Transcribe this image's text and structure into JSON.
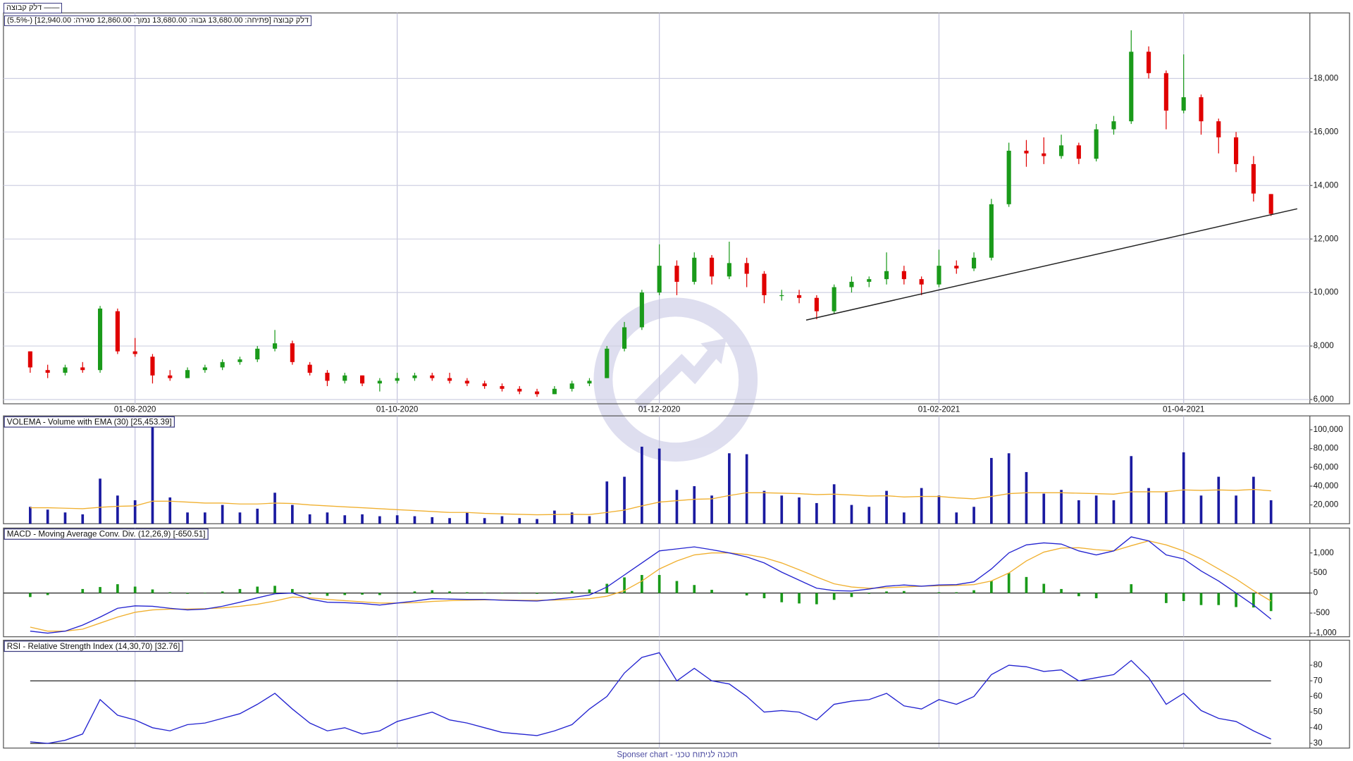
{
  "chart_data": [
    {
      "type": "candlestick",
      "legend": "דלק קבוצה",
      "info": "דלק קבוצה [פתיחה: 13,680.00  גבוה: 13,680.00  נמוך: 12,860.00  סגירה: 12,940.00] (-5.5%)",
      "categories": [
        null,
        null,
        null,
        null,
        null,
        null,
        "01-08-2020",
        null,
        null,
        null,
        null,
        null,
        null,
        null,
        null,
        null,
        null,
        null,
        null,
        null,
        null,
        "01-10-2020",
        null,
        null,
        null,
        null,
        null,
        null,
        null,
        null,
        null,
        null,
        null,
        null,
        null,
        null,
        "01-12-2020",
        null,
        null,
        null,
        null,
        null,
        null,
        null,
        null,
        null,
        null,
        null,
        null,
        null,
        null,
        null,
        "01-02-2021",
        null,
        null,
        null,
        null,
        null,
        null,
        null,
        null,
        null,
        null,
        null,
        null,
        null,
        "01-04-2021",
        null,
        null,
        null,
        null,
        null
      ],
      "open": [
        7800,
        7100,
        7000,
        7200,
        7100,
        9300,
        7800,
        7600,
        6900,
        6800,
        7100,
        7200,
        7400,
        7500,
        7900,
        8100,
        7300,
        7000,
        6700,
        6900,
        6600,
        6700,
        6800,
        6900,
        6800,
        6700,
        6600,
        6500,
        6400,
        6300,
        6200,
        6400,
        6600,
        6800,
        7900,
        8700,
        10000,
        11000,
        10400,
        11300,
        10600,
        11100,
        10700,
        9900,
        9900,
        9800,
        9300,
        10200,
        10400,
        10500,
        10800,
        10500,
        10300,
        11000,
        10900,
        11300,
        13300,
        15300,
        15200,
        15100,
        15500,
        15000,
        16100,
        16400,
        19000,
        18200,
        16800,
        17300,
        16400,
        15800,
        14800,
        13680
      ],
      "high": [
        7800,
        7300,
        7300,
        7400,
        9500,
        9400,
        8300,
        7700,
        7100,
        7200,
        7300,
        7500,
        7600,
        8000,
        8600,
        8200,
        7400,
        7100,
        7000,
        6900,
        6800,
        7000,
        7000,
        7000,
        7000,
        6800,
        6700,
        6600,
        6500,
        6400,
        6500,
        6700,
        6800,
        8000,
        8900,
        10100,
        11800,
        11200,
        11500,
        11400,
        11900,
        11300,
        10800,
        10100,
        10100,
        9900,
        10300,
        10600,
        10600,
        11500,
        11000,
        10600,
        11600,
        11200,
        11500,
        13500,
        15600,
        15700,
        15800,
        15900,
        15600,
        16300,
        16600,
        19800,
        19200,
        18300,
        18900,
        17400,
        16500,
        16000,
        15100,
        13680
      ],
      "low": [
        7000,
        6800,
        6900,
        7000,
        7000,
        7700,
        7600,
        6600,
        6700,
        6800,
        7000,
        7100,
        7300,
        7400,
        7800,
        7300,
        6900,
        6500,
        6600,
        6500,
        6300,
        6600,
        6700,
        6700,
        6600,
        6500,
        6400,
        6300,
        6200,
        6100,
        6200,
        6300,
        6500,
        6800,
        7800,
        8600,
        9900,
        9900,
        10300,
        10300,
        10500,
        10200,
        9600,
        9700,
        9600,
        9000,
        9200,
        10000,
        10200,
        10300,
        10300,
        9900,
        10200,
        10700,
        10800,
        11200,
        13200,
        14700,
        14800,
        15000,
        14800,
        14900,
        15900,
        16300,
        18000,
        16100,
        16700,
        15900,
        15200,
        14500,
        13400,
        12860
      ],
      "close": [
        7200,
        7000,
        7200,
        7100,
        9400,
        7800,
        7700,
        6900,
        6800,
        7100,
        7200,
        7400,
        7500,
        7900,
        8100,
        7400,
        7000,
        6700,
        6900,
        6600,
        6700,
        6800,
        6900,
        6800,
        6700,
        6600,
        6500,
        6400,
        6300,
        6200,
        6400,
        6600,
        6700,
        7900,
        8700,
        10000,
        11000,
        10400,
        11300,
        10600,
        11100,
        10700,
        9900,
        9900,
        9800,
        9300,
        10200,
        10400,
        10500,
        10800,
        10500,
        10300,
        11000,
        10900,
        11300,
        13300,
        15300,
        15200,
        15100,
        15500,
        15000,
        16100,
        16400,
        19000,
        18200,
        16800,
        17300,
        16400,
        15800,
        14800,
        13700,
        12940
      ],
      "up_color": "#1a9a1a",
      "down_color": "#e00000",
      "trend_line": {
        "values": [
          8970,
          13130
        ],
        "color": "#222222"
      },
      "ylim": [
        5840,
        20450
      ],
      "yticks": [
        {
          "value": 6000,
          "label": "6,000"
        },
        {
          "value": 8000,
          "label": "8,000"
        },
        {
          "value": 10000,
          "label": "10,000"
        },
        {
          "value": 12000,
          "label": "12,000"
        },
        {
          "value": 14000,
          "label": "14,000"
        },
        {
          "value": 16000,
          "label": "16,000"
        },
        {
          "value": 18000,
          "label": "18,000"
        }
      ],
      "grid": true
    },
    {
      "type": "bar",
      "title": "VOLEMA - Volume with EMA (30) [25,453.39]",
      "values": [
        18000,
        15000,
        12000,
        10000,
        48000,
        30000,
        25000,
        105000,
        28000,
        12000,
        12000,
        20000,
        12000,
        16000,
        33000,
        20000,
        10000,
        12000,
        9000,
        10000,
        8000,
        9000,
        8000,
        7000,
        6000,
        12000,
        6000,
        8000,
        6000,
        5000,
        14000,
        12000,
        8000,
        45000,
        50000,
        82000,
        80000,
        36000,
        40000,
        30000,
        75000,
        74000,
        35000,
        30000,
        28000,
        22000,
        42000,
        20000,
        18000,
        35000,
        12000,
        38000,
        30000,
        12000,
        18000,
        70000,
        75000,
        55000,
        32000,
        36000,
        25000,
        30000,
        25000,
        72000,
        38000,
        34000,
        76000,
        30000,
        50000,
        30000,
        50000,
        25000
      ],
      "color": "#1a1aa0",
      "ema": {
        "color": "#f0b030",
        "values": [
          17000,
          17000,
          16500,
          16000,
          17500,
          18500,
          19000,
          24000,
          24000,
          23000,
          22000,
          22000,
          21000,
          21000,
          22000,
          21500,
          20000,
          19000,
          18000,
          17000,
          16000,
          15000,
          14000,
          13000,
          12000,
          12000,
          11000,
          10500,
          10000,
          9500,
          9800,
          10000,
          9800,
          12000,
          14500,
          19000,
          23000,
          24500,
          26000,
          26500,
          30000,
          33000,
          33000,
          32500,
          32000,
          31000,
          31500,
          30500,
          29500,
          29800,
          28500,
          29000,
          29000,
          27500,
          26500,
          29000,
          32000,
          33000,
          33000,
          33000,
          32500,
          32000,
          31500,
          34000,
          34000,
          34000,
          36000,
          35500,
          36000,
          35500,
          36500,
          35000
        ]
      },
      "ylim": [
        0,
        114800
      ],
      "yticks": [
        {
          "value": 20000,
          "label": "20,000"
        },
        {
          "value": 40000,
          "label": "40,000"
        },
        {
          "value": 60000,
          "label": "60,000"
        },
        {
          "value": 80000,
          "label": "80,000"
        },
        {
          "value": 100000,
          "label": "100,000"
        }
      ],
      "grid": false
    },
    {
      "type": "macd",
      "title": "MACD - Moving Average Conv. Div. (12,26,9) [-650.51]",
      "macd": {
        "color": "#2323d0",
        "values": [
          -950,
          -1000,
          -950,
          -800,
          -600,
          -380,
          -320,
          -330,
          -380,
          -420,
          -400,
          -330,
          -230,
          -120,
          -20,
          0,
          -150,
          -230,
          -240,
          -260,
          -300,
          -250,
          -200,
          -140,
          -150,
          -160,
          -160,
          -180,
          -190,
          -200,
          -160,
          -110,
          -50,
          150,
          450,
          750,
          1050,
          1100,
          1150,
          1080,
          1000,
          900,
          750,
          520,
          320,
          120,
          60,
          50,
          100,
          170,
          200,
          170,
          200,
          210,
          280,
          600,
          1000,
          1200,
          1250,
          1220,
          1050,
          950,
          1050,
          1400,
          1300,
          950,
          850,
          550,
          300,
          0,
          -300,
          -650
        ]
      },
      "signal": {
        "color": "#f0b030",
        "values": [
          -850,
          -950,
          -950,
          -900,
          -750,
          -600,
          -480,
          -420,
          -400,
          -400,
          -390,
          -370,
          -330,
          -280,
          -200,
          -100,
          -120,
          -160,
          -190,
          -220,
          -250,
          -250,
          -240,
          -210,
          -190,
          -180,
          -170,
          -170,
          -180,
          -180,
          -175,
          -160,
          -140,
          -80,
          60,
          300,
          600,
          800,
          950,
          1000,
          1000,
          960,
          880,
          750,
          580,
          400,
          230,
          150,
          120,
          130,
          150,
          170,
          180,
          190,
          210,
          300,
          500,
          800,
          1020,
          1120,
          1130,
          1080,
          1050,
          1180,
          1300,
          1200,
          1050,
          850,
          600,
          350,
          60,
          -200
        ]
      },
      "histogram": {
        "color": "#1a9a1a",
        "values": [
          -100,
          -50,
          0,
          100,
          150,
          220,
          160,
          90,
          20,
          -20,
          -10,
          40,
          100,
          160,
          180,
          100,
          -30,
          -70,
          -50,
          -40,
          -50,
          0,
          40,
          70,
          40,
          20,
          10,
          -10,
          -10,
          -20,
          15,
          50,
          90,
          230,
          390,
          450,
          450,
          300,
          200,
          80,
          0,
          -60,
          -130,
          -230,
          -260,
          -280,
          -170,
          -100,
          -20,
          40,
          50,
          0,
          20,
          20,
          70,
          300,
          500,
          400,
          230,
          100,
          -80,
          -130,
          0,
          220,
          0,
          -250,
          -200,
          -300,
          -300,
          -350,
          -360,
          -450
        ]
      },
      "ylim": [
        -1090,
        1620
      ],
      "yticks": [
        {
          "value": -1000,
          "label": "-1,000"
        },
        -500,
        0,
        500,
        {
          "value": 1000,
          "label": "1,000"
        }
      ],
      "grid": false
    },
    {
      "type": "line",
      "title": "RSI - Relative Strength Index (14,30,70) [32.76]",
      "values": [
        31,
        30,
        32,
        36,
        58,
        48,
        45,
        40,
        38,
        42,
        43,
        46,
        49,
        55,
        62,
        52,
        43,
        38,
        40,
        36,
        38,
        44,
        47,
        50,
        45,
        43,
        40,
        37,
        36,
        35,
        38,
        42,
        52,
        60,
        75,
        85,
        88,
        70,
        78,
        70,
        68,
        60,
        50,
        51,
        50,
        45,
        55,
        57,
        58,
        62,
        54,
        52,
        58,
        55,
        60,
        74,
        80,
        79,
        76,
        77,
        70,
        72,
        74,
        83,
        72,
        55,
        62,
        51,
        46,
        44,
        38,
        32.76
      ],
      "color": "#2323d0",
      "levels": [
        30,
        70
      ],
      "ylim": [
        27,
        96
      ],
      "yticks": [
        30,
        40,
        50,
        60,
        70,
        80
      ],
      "grid": false
    }
  ],
  "footer": "Sponser chart - תוכנה לניתוח טכני"
}
